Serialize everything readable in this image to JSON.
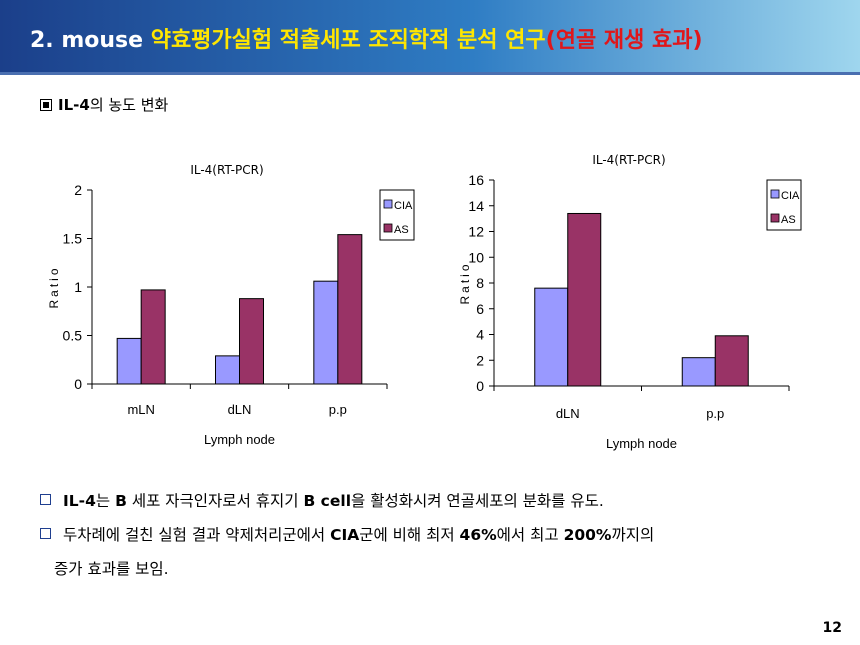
{
  "header": {
    "title_part1": "2. mouse ",
    "title_part2": "약효평가실험 적출세포 조직학적 분석 연구",
    "title_part3": "(연골 재생 효과)",
    "colors": {
      "part1": "#ffffff",
      "part2": "#ffe600",
      "part3": "#e0161a"
    }
  },
  "section": {
    "icon": "square-bullet-icon",
    "label_bold": "IL-4",
    "label_rest": "의 농도 변화"
  },
  "chart_data": [
    {
      "type": "bar",
      "title": "IL-4(RT-PCR)",
      "xlabel": "Lymph node",
      "ylabel": "Ratio",
      "categories": [
        "mLN",
        "dLN",
        "p.p"
      ],
      "series": [
        {
          "name": "CIA",
          "color": "#9999ff",
          "values": [
            0.47,
            0.29,
            1.06
          ]
        },
        {
          "name": "AS",
          "color": "#993366",
          "values": [
            0.97,
            0.88,
            1.54
          ]
        }
      ],
      "ylim": [
        0,
        2
      ],
      "yticks": [
        "0",
        "0.5",
        "1",
        "1.5",
        "2"
      ],
      "legend": "right"
    },
    {
      "type": "bar",
      "title": "IL-4(RT-PCR)",
      "xlabel": "Lymph node",
      "ylabel": "Ratio",
      "categories": [
        "dLN",
        "p.p"
      ],
      "series": [
        {
          "name": "CIA",
          "color": "#9999ff",
          "values": [
            7.6,
            2.2
          ]
        },
        {
          "name": "AS",
          "color": "#993366",
          "values": [
            13.4,
            3.9
          ]
        }
      ],
      "ylim": [
        0,
        16
      ],
      "yticks": [
        "0",
        "2",
        "4",
        "6",
        "8",
        "10",
        "12",
        "14",
        "16"
      ],
      "legend": "top-right"
    }
  ],
  "bullets": [
    {
      "parts": [
        {
          "text": "IL-4",
          "bold": true
        },
        {
          "text": "는 ",
          "bold": false
        },
        {
          "text": "B",
          "bold": true
        },
        {
          "text": " 세포 자극인자로서 휴지기 ",
          "bold": false
        },
        {
          "text": "B cell",
          "bold": true
        },
        {
          "text": "을 활성화시켜 연골세포의 분화를 유도.",
          "bold": false
        }
      ]
    },
    {
      "parts": [
        {
          "text": "두차례에 걸친 실험 결과 약제처리군에서 ",
          "bold": false
        },
        {
          "text": "CIA",
          "bold": true
        },
        {
          "text": "군에 비해 최저 ",
          "bold": false
        },
        {
          "text": "46%",
          "bold": true
        },
        {
          "text": "에서 최고 ",
          "bold": false
        },
        {
          "text": "200%",
          "bold": true
        },
        {
          "text": "까지의",
          "bold": false
        }
      ]
    },
    {
      "parts": [
        {
          "text": "증가 효과를 보임.",
          "bold": false
        }
      ],
      "indent": true
    }
  ],
  "page_number": "12"
}
